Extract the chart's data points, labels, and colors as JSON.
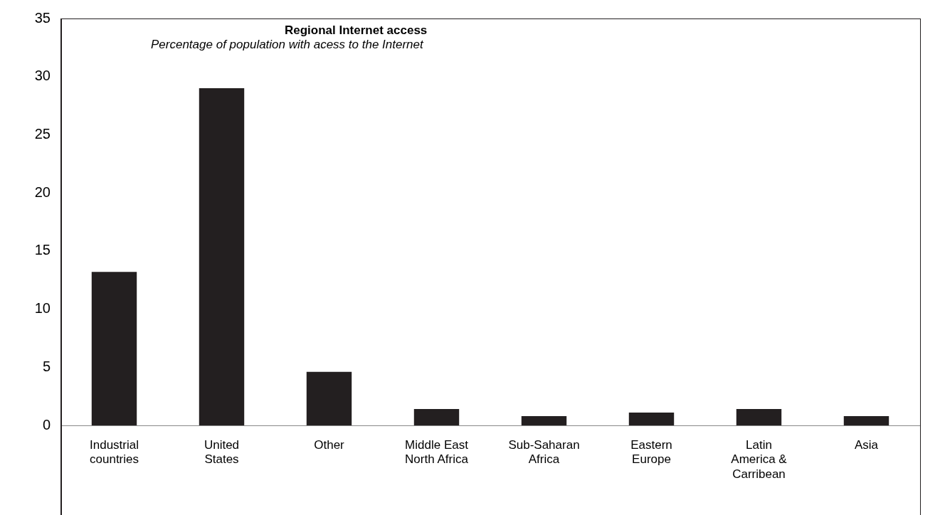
{
  "chart_data": {
    "type": "bar",
    "title": "Regional Internet access",
    "subtitle": "Percentage of population with acess to the Internet",
    "categories": [
      "Industrial countries",
      "United States",
      "Other",
      "Middle East North Africa",
      "Sub-Saharan Africa",
      "Eastern Europe",
      "Latin America & Carribean",
      "Asia"
    ],
    "values": [
      13.2,
      29,
      4.6,
      1.4,
      0.8,
      1.1,
      1.4,
      0.8
    ],
    "color": "#231f20",
    "ylim": [
      0,
      35
    ],
    "yticks": [
      0,
      5,
      10,
      15,
      20,
      25,
      30,
      35
    ],
    "grid": false,
    "legend": false
  }
}
